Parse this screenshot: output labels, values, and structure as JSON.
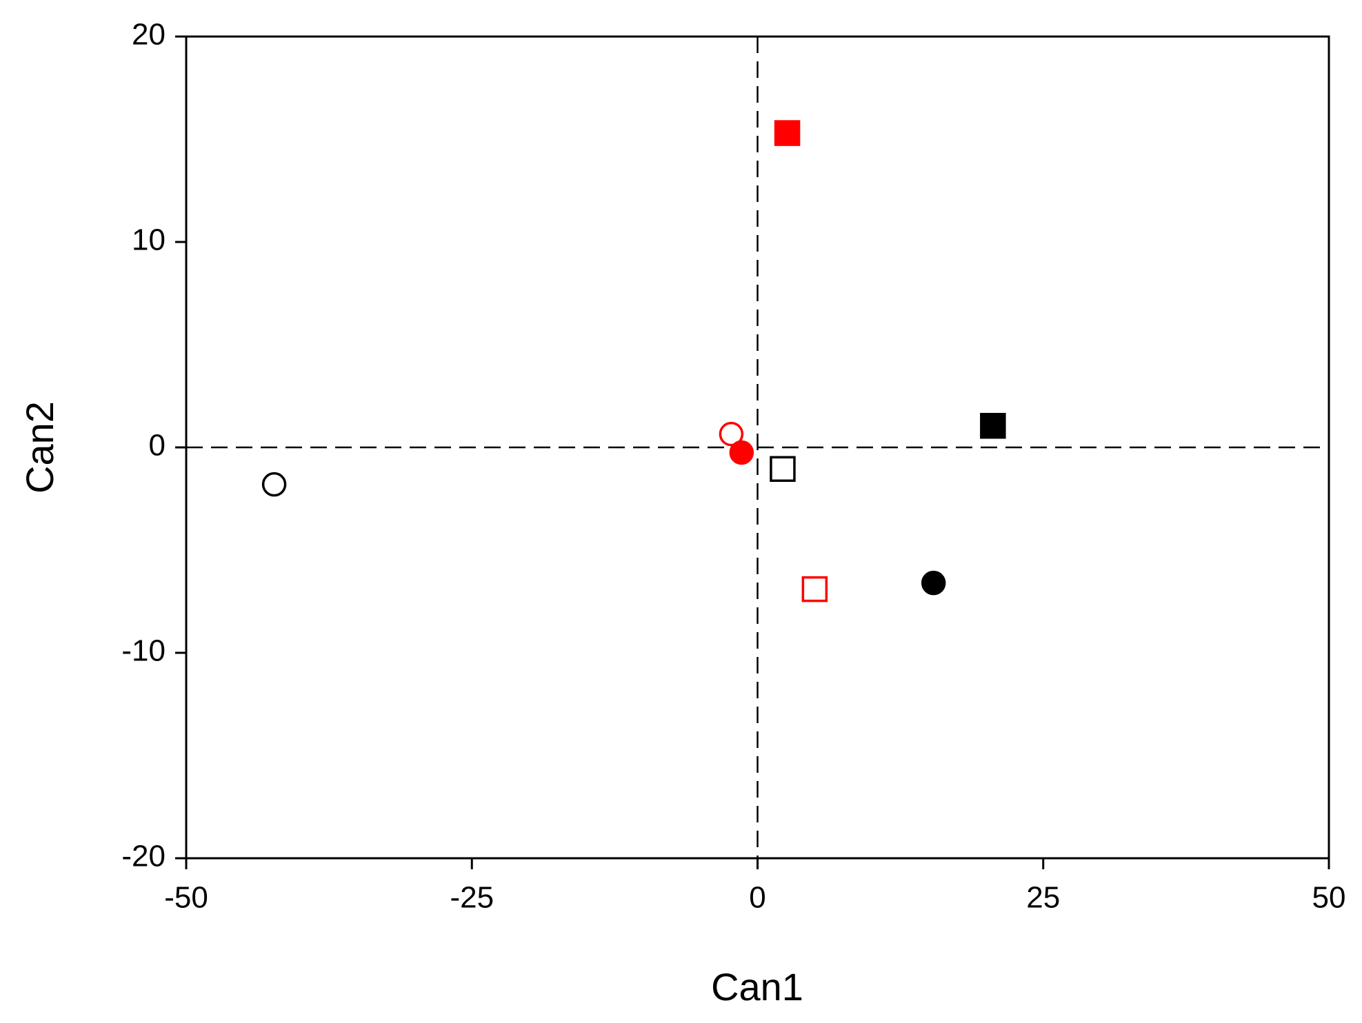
{
  "chart_data": {
    "type": "scatter",
    "x_label": "Can1",
    "y_label": "Can2",
    "xlim": [
      -50,
      50
    ],
    "xticks": [
      -50,
      -25,
      0,
      25,
      50
    ],
    "ylim": [
      -20,
      20
    ],
    "yticks": [
      -20,
      -10,
      0,
      10,
      20
    ],
    "reference_lines": {
      "x": 0,
      "y": 0
    },
    "series": [
      {
        "color": "#000000",
        "marker": "circle",
        "filled": false,
        "x": [
          -42.3
        ],
        "values": [
          -1.8
        ]
      },
      {
        "color": "#ff0000",
        "marker": "circle",
        "filled": false,
        "x": [
          -2.3
        ],
        "values": [
          0.65
        ]
      },
      {
        "color": "#ff0000",
        "marker": "circle",
        "filled": true,
        "x": [
          -1.4
        ],
        "values": [
          -0.25
        ]
      },
      {
        "color": "#ff0000",
        "marker": "square",
        "filled": true,
        "x": [
          2.6
        ],
        "values": [
          15.3
        ]
      },
      {
        "color": "#000000",
        "marker": "square",
        "filled": false,
        "x": [
          2.2
        ],
        "values": [
          -1.05
        ]
      },
      {
        "color": "#ff0000",
        "marker": "square",
        "filled": false,
        "x": [
          5.0
        ],
        "values": [
          -6.9
        ]
      },
      {
        "color": "#000000",
        "marker": "circle",
        "filled": true,
        "x": [
          15.4
        ],
        "values": [
          -6.6
        ]
      },
      {
        "color": "#000000",
        "marker": "square",
        "filled": true,
        "x": [
          20.6
        ],
        "values": [
          1.05
        ]
      }
    ]
  }
}
